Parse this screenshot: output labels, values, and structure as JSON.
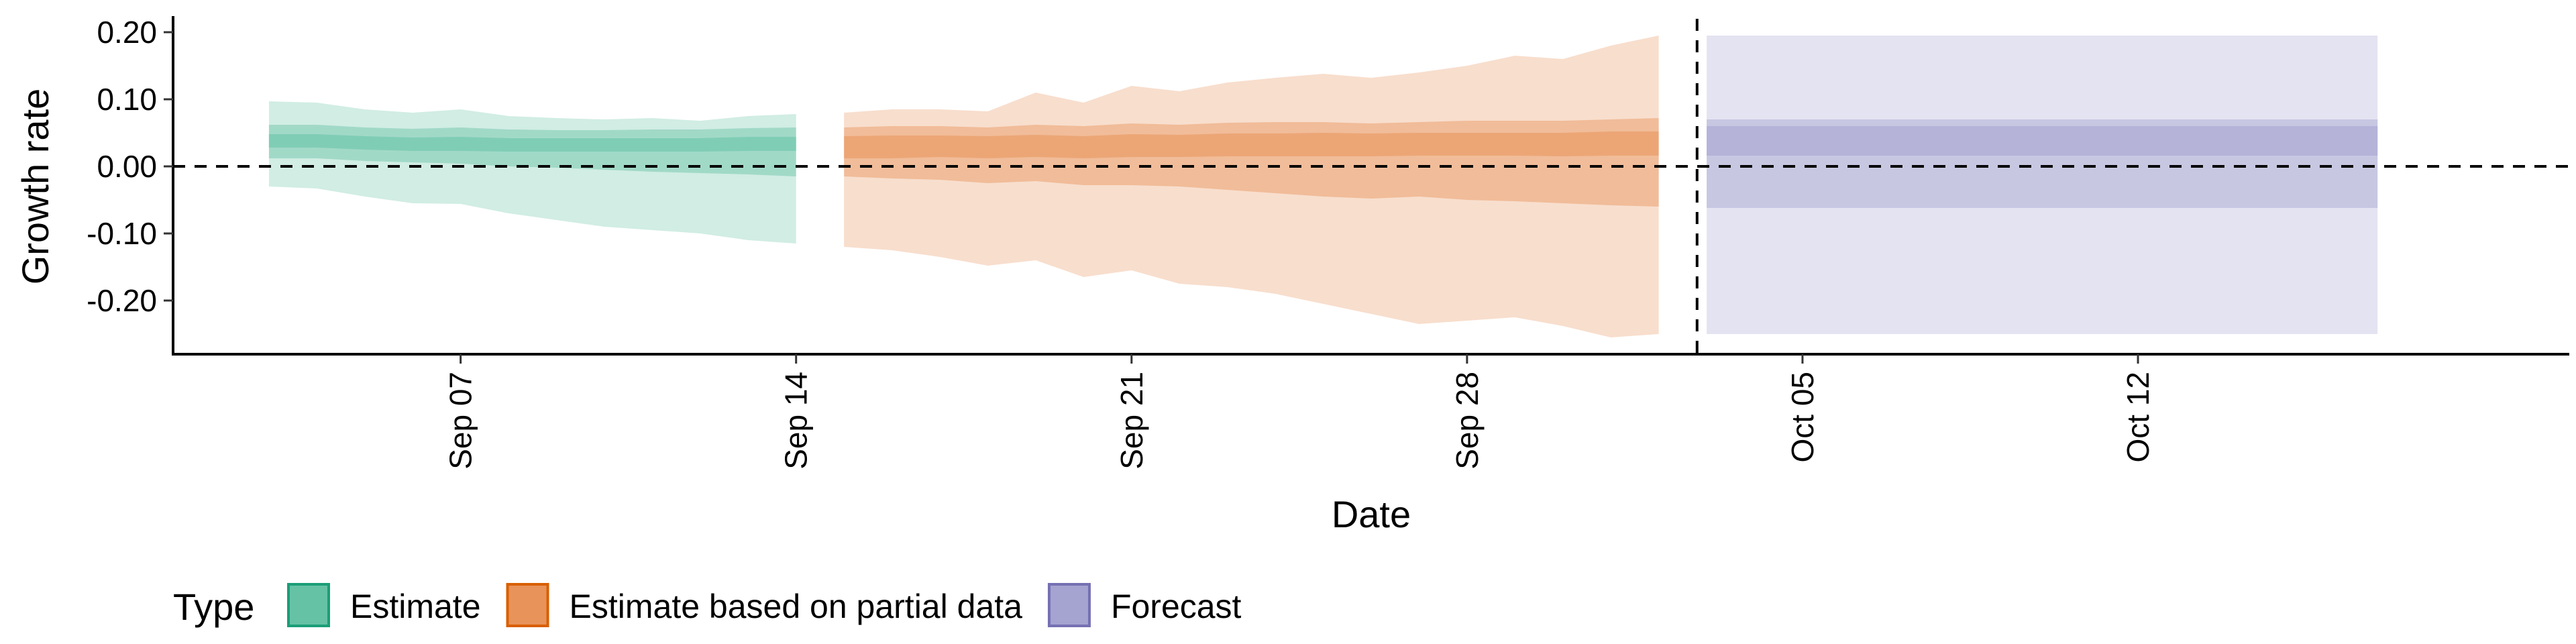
{
  "chart_data": {
    "type": "area",
    "title": "",
    "xlabel": "Date",
    "ylabel": "Growth rate",
    "ylim": [
      -0.28,
      0.22
    ],
    "xlim": [
      "2020-09-01",
      "2020-10-21"
    ],
    "x_ticks": [
      {
        "date": "2020-09-07",
        "label": "Sep 07"
      },
      {
        "date": "2020-09-14",
        "label": "Sep 14"
      },
      {
        "date": "2020-09-21",
        "label": "Sep 21"
      },
      {
        "date": "2020-09-28",
        "label": "Sep 28"
      },
      {
        "date": "2020-10-05",
        "label": "Oct 05"
      },
      {
        "date": "2020-10-12",
        "label": "Oct 12"
      }
    ],
    "y_ticks": [
      {
        "value": 0.2,
        "label": "0.20"
      },
      {
        "value": 0.1,
        "label": "0.10"
      },
      {
        "value": 0.0,
        "label": "0.00"
      },
      {
        "value": -0.1,
        "label": "-0.10"
      },
      {
        "value": -0.2,
        "label": "-0.20"
      }
    ],
    "reference_lines": {
      "horizontal": 0.0,
      "vertical_date": "2020-10-02",
      "style": "dashed"
    },
    "grid": false,
    "legend": {
      "title": "Type",
      "placement": "bottom",
      "entries": [
        {
          "label": "Estimate",
          "color": "#66c2a5",
          "border": "#1b9e77"
        },
        {
          "label": "Estimate based on partial data",
          "color": "#e8935a",
          "border": "#d95f02"
        },
        {
          "label": "Forecast",
          "color": "#a5a3d0",
          "border": "#7570b3"
        }
      ]
    },
    "series": [
      {
        "name": "Estimate",
        "color": "#66c2a5",
        "x": [
          "2020-09-03",
          "2020-09-04",
          "2020-09-05",
          "2020-09-06",
          "2020-09-07",
          "2020-09-08",
          "2020-09-09",
          "2020-09-10",
          "2020-09-11",
          "2020-09-12",
          "2020-09-13",
          "2020-09-14"
        ],
        "lower_90": [
          -0.03,
          -0.033,
          -0.045,
          -0.055,
          -0.056,
          -0.07,
          -0.08,
          -0.09,
          -0.095,
          -0.1,
          -0.11,
          -0.115
        ],
        "upper_90": [
          0.097,
          0.095,
          0.085,
          0.08,
          0.085,
          0.075,
          0.072,
          0.07,
          0.072,
          0.068,
          0.075,
          0.078
        ],
        "lower_50": [
          0.012,
          0.012,
          0.008,
          0.006,
          0.004,
          0.0,
          -0.002,
          -0.005,
          -0.008,
          -0.01,
          -0.012,
          -0.015
        ],
        "upper_50": [
          0.062,
          0.062,
          0.058,
          0.056,
          0.058,
          0.055,
          0.054,
          0.054,
          0.055,
          0.055,
          0.057,
          0.058
        ],
        "lower_20": [
          0.028,
          0.028,
          0.025,
          0.023,
          0.023,
          0.022,
          0.022,
          0.022,
          0.022,
          0.022,
          0.023,
          0.023
        ],
        "upper_20": [
          0.048,
          0.048,
          0.045,
          0.043,
          0.044,
          0.042,
          0.042,
          0.042,
          0.042,
          0.042,
          0.044,
          0.044
        ]
      },
      {
        "name": "Estimate based on partial data",
        "color": "#e8935a",
        "x": [
          "2020-09-15",
          "2020-09-16",
          "2020-09-17",
          "2020-09-18",
          "2020-09-19",
          "2020-09-20",
          "2020-09-21",
          "2020-09-22",
          "2020-09-23",
          "2020-09-24",
          "2020-09-25",
          "2020-09-26",
          "2020-09-27",
          "2020-09-28",
          "2020-09-29",
          "2020-09-30",
          "2020-10-01",
          "2020-10-02"
        ],
        "lower_90": [
          -0.12,
          -0.125,
          -0.135,
          -0.148,
          -0.14,
          -0.165,
          -0.155,
          -0.175,
          -0.18,
          -0.19,
          -0.205,
          -0.22,
          -0.235,
          -0.23,
          -0.225,
          -0.238,
          -0.255,
          -0.25
        ],
        "upper_90": [
          0.08,
          0.085,
          0.085,
          0.082,
          0.11,
          0.095,
          0.12,
          0.112,
          0.125,
          0.132,
          0.138,
          0.132,
          0.14,
          0.15,
          0.165,
          0.16,
          0.18,
          0.195
        ],
        "lower_50": [
          -0.015,
          -0.018,
          -0.02,
          -0.025,
          -0.022,
          -0.028,
          -0.028,
          -0.03,
          -0.035,
          -0.04,
          -0.045,
          -0.048,
          -0.045,
          -0.05,
          -0.052,
          -0.055,
          -0.058,
          -0.06
        ],
        "upper_50": [
          0.058,
          0.06,
          0.06,
          0.058,
          0.062,
          0.06,
          0.064,
          0.062,
          0.065,
          0.066,
          0.066,
          0.064,
          0.066,
          0.068,
          0.068,
          0.068,
          0.07,
          0.072
        ],
        "lower_20": [
          0.012,
          0.012,
          0.014,
          0.012,
          0.014,
          0.012,
          0.014,
          0.014,
          0.015,
          0.015,
          0.015,
          0.015,
          0.016,
          0.016,
          0.016,
          0.015,
          0.016,
          0.016
        ],
        "upper_20": [
          0.045,
          0.046,
          0.046,
          0.045,
          0.047,
          0.045,
          0.048,
          0.047,
          0.049,
          0.049,
          0.05,
          0.049,
          0.05,
          0.05,
          0.05,
          0.05,
          0.052,
          0.052
        ]
      },
      {
        "name": "Forecast",
        "color": "#a5a3d0",
        "x": [
          "2020-10-03",
          "2020-10-17"
        ],
        "lower_90": [
          -0.25,
          -0.25
        ],
        "upper_90": [
          0.195,
          0.195
        ],
        "lower_50": [
          -0.062,
          -0.062
        ],
        "upper_50": [
          0.07,
          0.07
        ],
        "lower_20": [
          0.016,
          0.016
        ],
        "upper_20": [
          0.06,
          0.06
        ]
      }
    ]
  }
}
